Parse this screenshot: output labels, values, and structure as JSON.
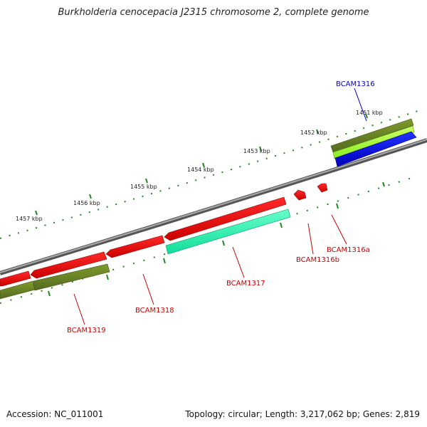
{
  "title": "Burkholderia cenocepacia J2315 chromosome 2, complete genome",
  "footer": {
    "accession": "Accession: NC_011001",
    "summary": "Topology: circular; Length: 3,217,062 bp; Genes: 2,819"
  },
  "ticks": [
    "1451 kbp",
    "1452 kbp",
    "1453 kbp",
    "1454 kbp",
    "1455 kbp",
    "1456 kbp",
    "1457 kbp"
  ],
  "genes": [
    {
      "name": "BCAM1316",
      "color": "#0000cc"
    },
    {
      "name": "BCAM1316a",
      "color": "#cc0000"
    },
    {
      "name": "BCAM1316b",
      "color": "#cc0000"
    },
    {
      "name": "BCAM1317",
      "color": "#cc0000"
    },
    {
      "name": "BCAM1318",
      "color": "#cc0000"
    },
    {
      "name": "BCAM1319",
      "color": "#cc0000"
    }
  ],
  "colors": {
    "backbone": "#888888",
    "ticks": "#228822",
    "cds_reverse": "#ee1111",
    "cds_forward_olive": "#6b8e23",
    "cds_forward_green": "#aaff44",
    "cds_forward_blue": "#0000ff",
    "cds_mint": "#33ffbb"
  }
}
